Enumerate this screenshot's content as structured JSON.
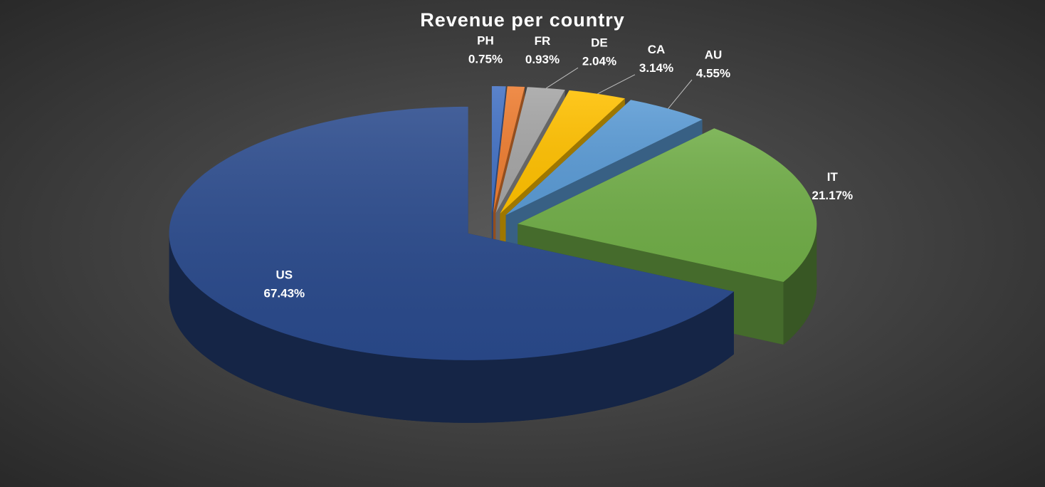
{
  "chart_data": {
    "type": "pie",
    "title": "Revenue per country",
    "categories": [
      "PH",
      "FR",
      "DE",
      "CA",
      "AU",
      "IT",
      "US"
    ],
    "values": [
      0.75,
      0.93,
      2.04,
      3.14,
      4.55,
      21.17,
      67.43
    ],
    "value_labels": [
      "0.75%",
      "0.93%",
      "2.04%",
      "3.14%",
      "4.55%",
      "21.17%",
      "67.43%"
    ],
    "colors": [
      "#4472c4",
      "#ed7d31",
      "#a5a5a5",
      "#ffc000",
      "#5b9bd5",
      "#70ad47",
      "#2a4a8c"
    ]
  }
}
